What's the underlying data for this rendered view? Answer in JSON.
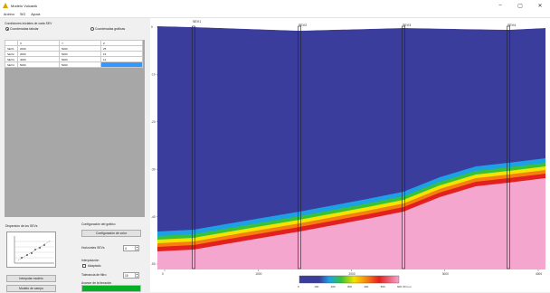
{
  "window": {
    "title": "Modelo Vulcanik",
    "controls": [
      "–",
      "▢",
      "✕"
    ]
  },
  "menu": [
    "Archivo",
    "SIG",
    "Ayuda"
  ],
  "left": {
    "section_title": "Condiciones iniciales de cada SEV",
    "radio_tabular": "Coordenadas tabular",
    "radio_graphic": "Coordenadas gráficas",
    "table": {
      "headers": [
        "",
        "X",
        "Y",
        "Z"
      ],
      "rows": [
        [
          "SEV1",
          "2000",
          "5000",
          "25"
        ],
        [
          "SEV2",
          "3000",
          "5000",
          "15"
        ],
        [
          "SEV3",
          "4000",
          "5000",
          "12"
        ],
        [
          "SEV4",
          "5000",
          "5000",
          ""
        ]
      ]
    },
    "dispersion_label": "Dispersión de los SEVs",
    "config_label": "Configuración del gráfico",
    "config_button": "Configuración de color",
    "sevs_label": "Horizontes SEVs",
    "sevs_value": "4",
    "interp_label": "Interpolación",
    "adjust_label": "Adaptado",
    "tolerance_label": "Tolerancia de filtro",
    "tolerance_value": "15",
    "advance_label": "Avance de la iteración",
    "progress": 1.0,
    "btn_interpolate": "Interpolar modelo",
    "btn_model": "Modelo de campo"
  },
  "plot": {
    "sev_labels": [
      "SEV1",
      "SEV2",
      "SEV3",
      "SEV4"
    ],
    "y_ticks": [
      "0",
      "-10",
      "-20",
      "-30",
      "-40",
      "-50"
    ],
    "x_ticks": [
      "0",
      "1000",
      "2000",
      "3000",
      "4000"
    ],
    "colorbar_ticks": [
      "0",
      "100",
      "200",
      "300",
      "400",
      "500",
      "600"
    ],
    "colorbar_unit": "Ohm·m",
    "colors": {
      "low": "#3a3d9c",
      "mid_blue": "#1ea0e6",
      "green": "#38c23a",
      "yellow": "#f4e300",
      "orange": "#f77f10",
      "red": "#e32020",
      "high": "#f4a6cf"
    }
  }
}
